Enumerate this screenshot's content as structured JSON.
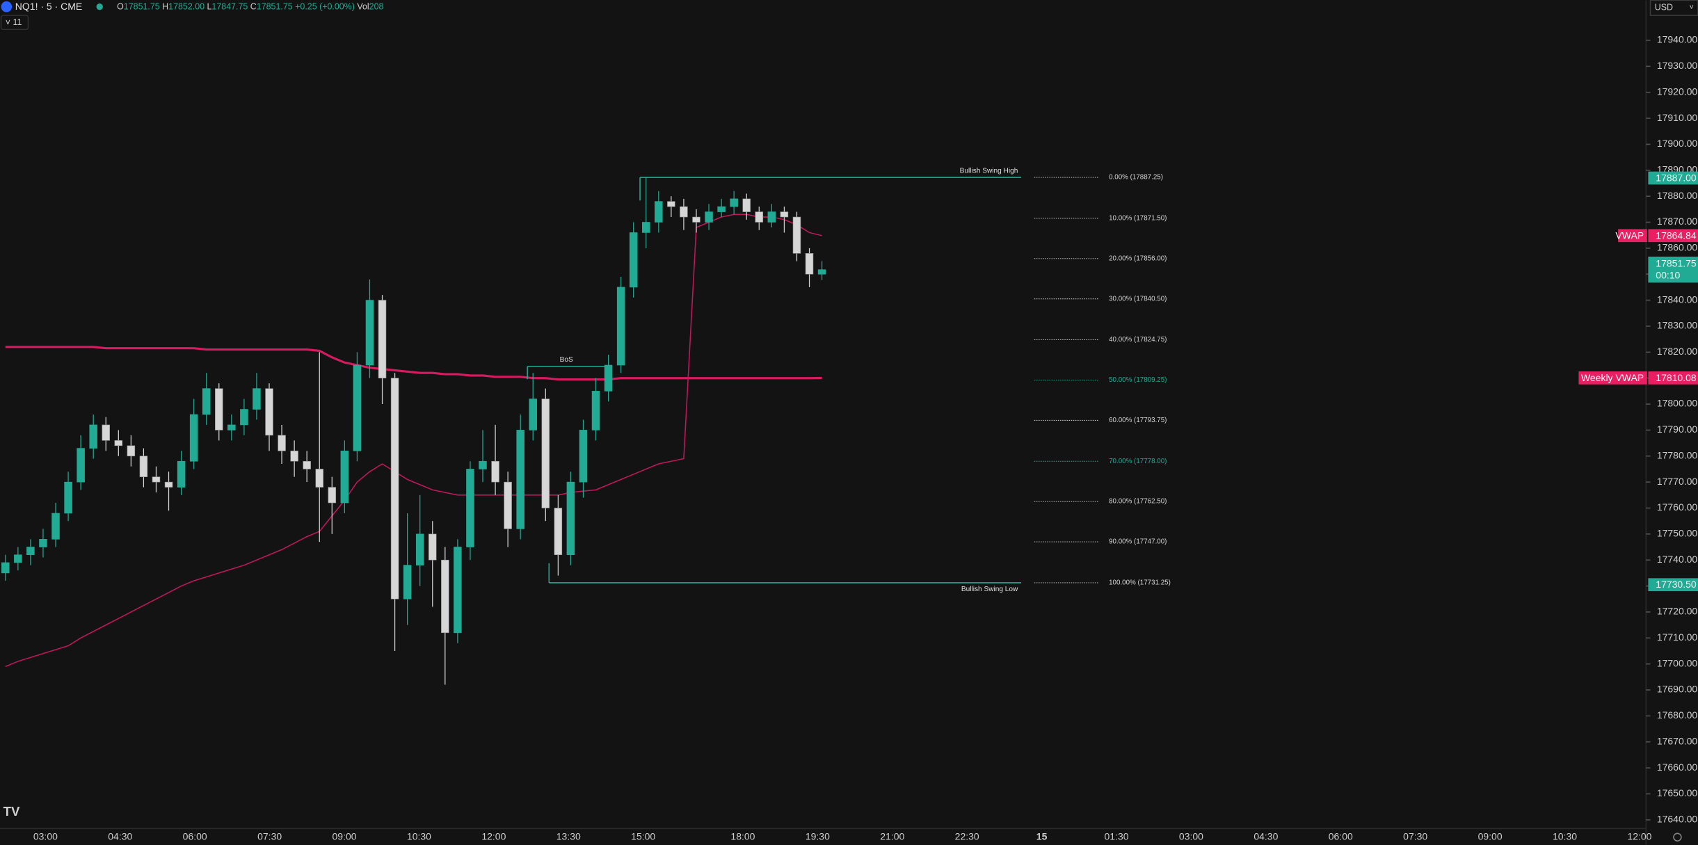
{
  "header": {
    "symbol": "NQ1! · 5 · CME",
    "open_label": "O",
    "open": "17851.75",
    "high_label": "H",
    "high": "17852.00",
    "low_label": "L",
    "low": "17847.75",
    "close_label": "C",
    "close": "17851.75",
    "change": "+0.25 (+0.00%)",
    "vol_label": "Vol",
    "vol": "208",
    "indicators_count": "11",
    "currency": "USD"
  },
  "chart_data": {
    "type": "candlestick",
    "up_color": "#22ab94",
    "down_color": "#d6d6d6",
    "open": [
      17735,
      17739,
      17742,
      17745,
      17748,
      17758,
      17770,
      17783,
      17792,
      17786,
      17784,
      17780,
      17772,
      17770,
      17768,
      17778,
      17796,
      17806,
      17790,
      17792,
      17798,
      17806,
      17788,
      17782,
      17778,
      17775,
      17768,
      17762,
      17782,
      17815,
      17840,
      17810,
      17725,
      17738,
      17750,
      17740,
      17712,
      17745,
      17775,
      17778,
      17770,
      17752,
      17790,
      17802,
      17760,
      17742,
      17770,
      17790,
      17805,
      17815,
      17845,
      17866,
      17870,
      17878,
      17876,
      17872,
      17870,
      17874,
      17876,
      17879,
      17874,
      17870,
      17874,
      17872,
      17858,
      17850
    ],
    "high": [
      17742,
      17745,
      17748,
      17752,
      17762,
      17774,
      17788,
      17796,
      17795,
      17790,
      17788,
      17783,
      17776,
      17774,
      17782,
      17802,
      17812,
      17808,
      17796,
      17802,
      17812,
      17808,
      17792,
      17786,
      17782,
      17820,
      17772,
      17786,
      17820,
      17848,
      17842,
      17812,
      17758,
      17765,
      17755,
      17745,
      17748,
      17778,
      17790,
      17792,
      17774,
      17796,
      17812,
      17806,
      17765,
      17774,
      17794,
      17810,
      17819,
      17849,
      17870,
      17887.25,
      17882,
      17880,
      17879,
      17875,
      17877,
      17879,
      17882,
      17881,
      17876,
      17877,
      17876,
      17874,
      17860,
      17855
    ],
    "low": [
      17732,
      17736,
      17738,
      17741,
      17745,
      17755,
      17767,
      17779,
      17782,
      17780,
      17776,
      17768,
      17766,
      17759,
      17765,
      17775,
      17792,
      17786,
      17786,
      17788,
      17794,
      17782,
      17777,
      17772,
      17770,
      17747,
      17750,
      17758,
      17778,
      17810,
      17800,
      17705,
      17715,
      17730,
      17722,
      17692,
      17708,
      17740,
      17770,
      17765,
      17745,
      17748,
      17786,
      17755,
      17734,
      17738,
      17764,
      17786,
      17801,
      17812,
      17841,
      17860,
      17866,
      17872,
      17867,
      17866,
      17867,
      17872,
      17873,
      17871,
      17867,
      17868,
      17866,
      17855,
      17845,
      17847.75
    ],
    "close": [
      17739,
      17742,
      17745,
      17748,
      17758,
      17770,
      17783,
      17792,
      17786,
      17784,
      17780,
      17772,
      17770,
      17768,
      17778,
      17796,
      17806,
      17790,
      17792,
      17798,
      17806,
      17788,
      17782,
      17778,
      17775,
      17768,
      17762,
      17782,
      17815,
      17840,
      17810,
      17725,
      17738,
      17750,
      17740,
      17712,
      17745,
      17775,
      17778,
      17770,
      17752,
      17790,
      17802,
      17760,
      17742,
      17770,
      17790,
      17805,
      17815,
      17845,
      17866,
      17870,
      17878,
      17876,
      17872,
      17870,
      17874,
      17876,
      17879,
      17874,
      17870,
      17874,
      17872,
      17858,
      17850,
      17851.75
    ],
    "series": [
      {
        "name": "Weekly VWAP",
        "color": "#d81b60",
        "width": 2,
        "last_value": {
          "value": 17810.08,
          "label": "17810.08"
        },
        "values": [
          17822,
          17822,
          17822,
          17822,
          17822,
          17822,
          17822,
          17822,
          17821.5,
          17821.5,
          17821.5,
          17821.5,
          17821.5,
          17821.5,
          17821.5,
          17821.5,
          17821,
          17821,
          17821,
          17821,
          17821,
          17821,
          17821,
          17821,
          17821,
          17820.5,
          17818,
          17816,
          17815,
          17814,
          17813.5,
          17813,
          17812.5,
          17812,
          17812,
          17811.5,
          17811.5,
          17811,
          17811,
          17810.5,
          17810.5,
          17810.5,
          17810,
          17810,
          17809.5,
          17809.5,
          17809.5,
          17809.5,
          17809.5,
          17810,
          17810,
          17810,
          17810,
          17810,
          17810,
          17810,
          17810,
          17810,
          17810,
          17810,
          17810,
          17810,
          17810,
          17810,
          17810,
          17810.08
        ]
      },
      {
        "name": "VWAP",
        "color": "#c2185b",
        "width": 1,
        "last_value": {
          "value": 17864.84,
          "label": "17864.84"
        },
        "values": [
          17699,
          17701,
          17702.5,
          17704,
          17705.5,
          17707,
          17710,
          17712.5,
          17715,
          17717.5,
          17720,
          17722.5,
          17725,
          17727.5,
          17730,
          17732,
          17733.5,
          17735,
          17736.5,
          17738,
          17740,
          17742,
          17744,
          17746.5,
          17749,
          17751,
          17757,
          17763,
          17770,
          17774,
          17777,
          17774,
          17771,
          17769,
          17767,
          17766,
          17765,
          17765,
          17765,
          17765,
          17765,
          17765,
          17765,
          17765,
          17765,
          17766,
          17766.5,
          17767,
          17769,
          17771,
          17773,
          17775,
          17777,
          17778,
          17779,
          17868,
          17870,
          17872,
          17873,
          17873,
          17872,
          17872,
          17871,
          17869,
          17866,
          17864.84
        ]
      }
    ],
    "ylim": [
      17636.67,
      17955.42
    ],
    "yticks": [
      {
        "value": 17640,
        "label": "17640.00"
      },
      {
        "value": 17650,
        "label": "17650.00"
      },
      {
        "value": 17660,
        "label": "17660.00"
      },
      {
        "value": 17670,
        "label": "17670.00"
      },
      {
        "value": 17680,
        "label": "17680.00"
      },
      {
        "value": 17690,
        "label": "17690.00"
      },
      {
        "value": 17700,
        "label": "17700.00"
      },
      {
        "value": 17710,
        "label": "17710.00"
      },
      {
        "value": 17720,
        "label": "17720.00"
      },
      {
        "value": 17730,
        "label": "17730.00"
      },
      {
        "value": 17740,
        "label": "17740.00"
      },
      {
        "value": 17750,
        "label": "17750.00"
      },
      {
        "value": 17760,
        "label": "17760.00"
      },
      {
        "value": 17770,
        "label": "17770.00"
      },
      {
        "value": 17780,
        "label": "17780.00"
      },
      {
        "value": 17790,
        "label": "17790.00"
      },
      {
        "value": 17800,
        "label": "17800.00"
      },
      {
        "value": 17810,
        "label": "17810.00"
      },
      {
        "value": 17820,
        "label": "17820.00"
      },
      {
        "value": 17830,
        "label": "17830.00"
      },
      {
        "value": 17840,
        "label": "17840.00"
      },
      {
        "value": 17850,
        "label": "17850.00"
      },
      {
        "value": 17860,
        "label": "17860.00"
      },
      {
        "value": 17870,
        "label": "17870.00"
      },
      {
        "value": 17880,
        "label": "17880.00"
      },
      {
        "value": 17890,
        "label": "17890.00"
      },
      {
        "value": 17900,
        "label": "17900.00"
      },
      {
        "value": 17910,
        "label": "17910.00"
      },
      {
        "value": 17920,
        "label": "17920.00"
      },
      {
        "value": 17930,
        "label": "17930.00"
      },
      {
        "value": 17940,
        "label": "17940.00"
      }
    ],
    "time_labels": [
      "03:00",
      "04:30",
      "06:00",
      "07:30",
      "09:00",
      "10:30",
      "12:00",
      "13:30",
      "15:00",
      "18:00",
      "19:30",
      "21:00",
      "22:30",
      "15",
      "01:30",
      "03:00",
      "04:30",
      "06:00",
      "07:30",
      "09:00",
      "10:30",
      "12:00"
    ],
    "last_price": {
      "value": 17851.75,
      "label": "17851.75",
      "countdown": "00:10",
      "color": "#22ab94"
    },
    "price_markers": [
      {
        "value": 17887.0,
        "label": "17887.00",
        "color": "#22ab94"
      },
      {
        "value": 17730.5,
        "label": "17730.50",
        "color": "#22ab94"
      }
    ],
    "annotations": [
      {
        "text": "Bullish Swing High",
        "value": 17887.25,
        "color": "#22ab94"
      },
      {
        "text": "Bullish Swing Low",
        "value": 17731.25,
        "color": "#22ab94"
      },
      {
        "text": "BoS",
        "value": 17814.5,
        "color": "#22ab94"
      }
    ],
    "fib_levels": [
      {
        "value": 17887.25,
        "label": "0.00% (17887.25)",
        "color": "#d6d6d6"
      },
      {
        "value": 17871.5,
        "label": "10.00% (17871.50)",
        "color": "#d6d6d6"
      },
      {
        "value": 17856.0,
        "label": "20.00% (17856.00)",
        "color": "#d6d6d6"
      },
      {
        "value": 17840.5,
        "label": "30.00% (17840.50)",
        "color": "#d6d6d6"
      },
      {
        "value": 17824.75,
        "label": "40.00% (17824.75)",
        "color": "#d6d6d6"
      },
      {
        "value": 17809.25,
        "label": "50.00% (17809.25)",
        "color": "#22ab94"
      },
      {
        "value": 17793.75,
        "label": "60.00% (17793.75)",
        "color": "#d6d6d6"
      },
      {
        "value": 17778.0,
        "label": "70.00% (17778.00)",
        "color": "#22ab94"
      },
      {
        "value": 17762.5,
        "label": "80.00% (17762.50)",
        "color": "#d6d6d6"
      },
      {
        "value": 17747.0,
        "label": "90.00% (17747.00)",
        "color": "#d6d6d6"
      },
      {
        "value": 17731.25,
        "label": "100.00% (17731.25)",
        "color": "#d6d6d6"
      }
    ]
  }
}
